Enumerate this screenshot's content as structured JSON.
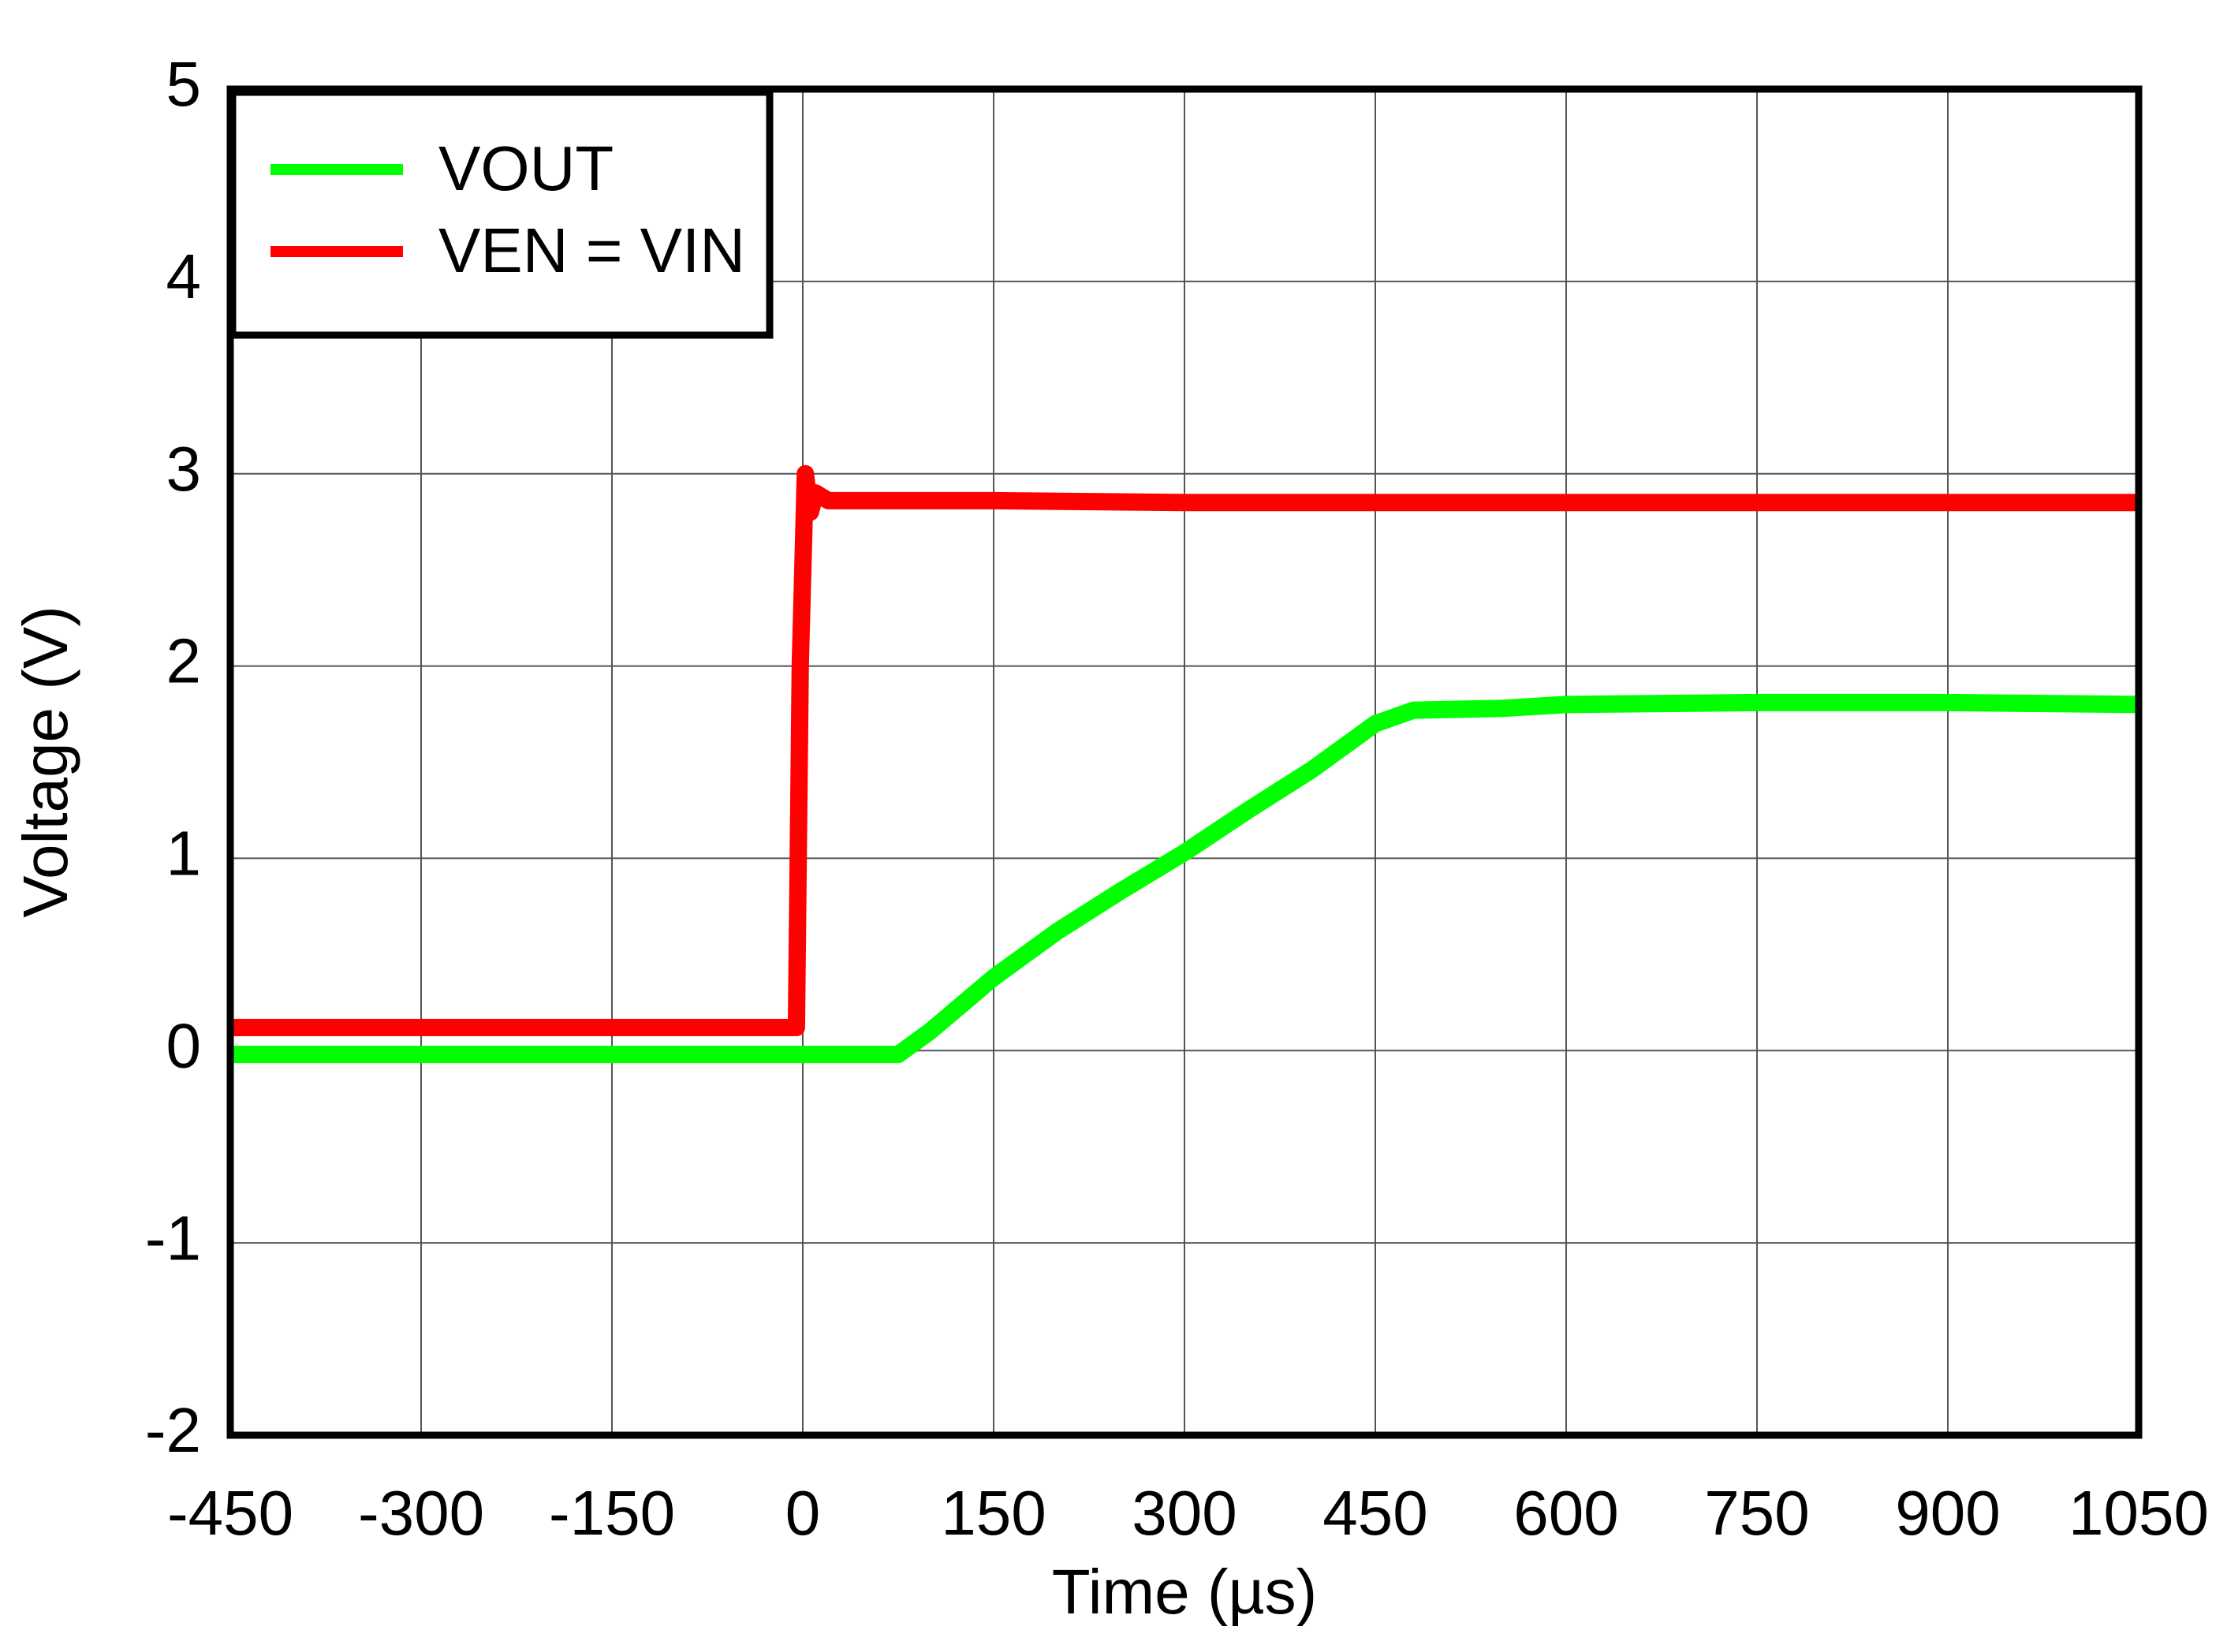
{
  "chart_data": {
    "type": "line",
    "xlabel": "Time (µs)",
    "ylabel": "Voltage (V)",
    "xlim": [
      -450,
      1050
    ],
    "ylim": [
      -2,
      5
    ],
    "xticks": [
      -450,
      -300,
      -150,
      0,
      150,
      300,
      450,
      600,
      750,
      900,
      1050
    ],
    "yticks": [
      -2,
      -1,
      0,
      1,
      2,
      3,
      4,
      5
    ],
    "grid": true,
    "legend": "upper left",
    "series": [
      {
        "name": "VOUT",
        "color": "#00ff00",
        "x": [
          -450,
          -300,
          -150,
          0,
          75,
          100,
          150,
          200,
          250,
          300,
          350,
          400,
          450,
          480,
          550,
          600,
          750,
          900,
          1050
        ],
        "values": [
          -0.02,
          -0.02,
          -0.02,
          -0.02,
          -0.02,
          0.1,
          0.38,
          0.62,
          0.83,
          1.03,
          1.25,
          1.46,
          1.7,
          1.77,
          1.78,
          1.8,
          1.81,
          1.81,
          1.8
        ]
      },
      {
        "name": "VEN = VIN",
        "color": "#ff0000",
        "x": [
          -450,
          -300,
          -150,
          -5,
          -2,
          2,
          6,
          10,
          20,
          150,
          300,
          450,
          600,
          750,
          900,
          1050
        ],
        "values": [
          0.12,
          0.12,
          0.12,
          0.12,
          2.0,
          3.0,
          2.8,
          2.9,
          2.86,
          2.86,
          2.85,
          2.85,
          2.85,
          2.85,
          2.85,
          2.85
        ]
      }
    ]
  }
}
